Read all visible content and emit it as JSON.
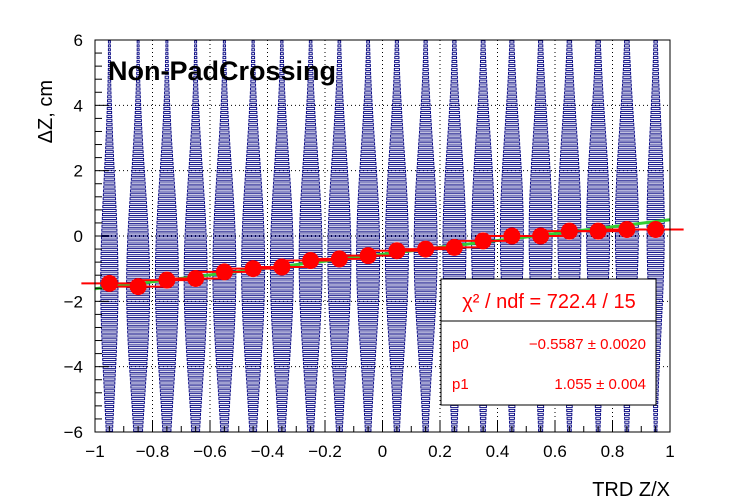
{
  "chart_data": {
    "type": "scatter",
    "title": "Non-PadCrossing",
    "xlabel": "TRD Z/X",
    "ylabel": "ΔZ, cm",
    "xlim": [
      -1,
      1
    ],
    "ylim": [
      -6,
      6
    ],
    "grid": true,
    "x_ticks": [
      -1,
      -0.8,
      -0.6,
      -0.4,
      -0.2,
      0,
      0.2,
      0.4,
      0.6,
      0.8,
      1
    ],
    "x_tick_labels": [
      "−1",
      "−0.8",
      "−0.6",
      "−0.4",
      "−0.2",
      "0",
      "0.2",
      "0.4",
      "0.6",
      "0.8",
      "1"
    ],
    "y_ticks": [
      -6,
      -4,
      -2,
      0,
      2,
      4,
      6
    ],
    "y_tick_labels": [
      "−6",
      "−4",
      "−2",
      "0",
      "2",
      "4",
      "6"
    ],
    "profile_points": {
      "x": [
        -0.95,
        -0.85,
        -0.75,
        -0.65,
        -0.55,
        -0.45,
        -0.35,
        -0.25,
        -0.15,
        -0.05,
        0.05,
        0.15,
        0.25,
        0.35,
        0.45,
        0.55,
        0.65,
        0.75,
        0.85,
        0.95
      ],
      "y": [
        -1.45,
        -1.55,
        -1.35,
        -1.3,
        -1.1,
        -1.0,
        -0.95,
        -0.75,
        -0.7,
        -0.6,
        -0.45,
        -0.4,
        -0.35,
        -0.15,
        0.0,
        0.0,
        0.15,
        0.15,
        0.2,
        0.2
      ],
      "color": "#ff0000"
    },
    "fit": {
      "function": "p0 + p1*x",
      "p0": -0.5587,
      "p1": 1.055,
      "color": "#33cc33"
    },
    "box_bins": {
      "x_centers": [
        -0.95,
        -0.85,
        -0.75,
        -0.65,
        -0.55,
        -0.45,
        -0.35,
        -0.25,
        -0.15,
        -0.05,
        0.05,
        0.15,
        0.25,
        0.35,
        0.45,
        0.55,
        0.65,
        0.75,
        0.85,
        0.95
      ],
      "widths_at_center": [
        0.06,
        0.08,
        0.08,
        0.08,
        0.08,
        0.08,
        0.08,
        0.08,
        0.08,
        0.08,
        0.08,
        0.08,
        0.08,
        0.08,
        0.08,
        0.08,
        0.08,
        0.08,
        0.08,
        0.06
      ],
      "color": "#000080"
    },
    "stats": {
      "chi2_label": "χ² / ndf = 722.4 / 15",
      "p0_name": "p0",
      "p0_value": "−0.5587 ± 0.0020",
      "p1_name": "p1",
      "p1_value": "1.055 ± 0.004",
      "position": "bottom-right"
    }
  }
}
